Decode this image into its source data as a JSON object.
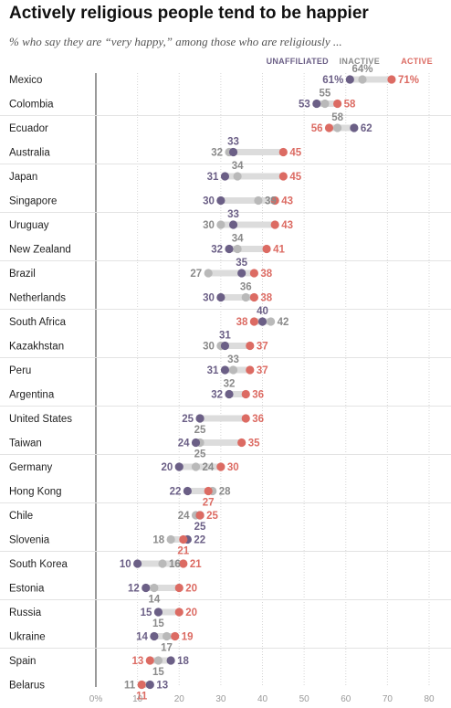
{
  "title": "Actively religious people tend to be happier",
  "subtitle": "% who say they are “very happy,” among those who are religiously ...",
  "colors": {
    "unaffiliated": "#6b5f86",
    "inactive": "#b9b9b9",
    "active": "#dc6b63",
    "inactive_label": "#8a8a8a"
  },
  "legend": {
    "unaffiliated": "UNAFFILIATED",
    "inactive": "INACTIVE",
    "active": "ACTIVE"
  },
  "chart_data": {
    "type": "dot",
    "title": "Actively religious people tend to be happier",
    "subtitle": "% who say they are “very happy,” among those who are religiously ...",
    "xlim": [
      0,
      80
    ],
    "xticks": [
      "0%",
      "10",
      "20",
      "30",
      "40",
      "50",
      "60",
      "70",
      "80"
    ],
    "series": [
      {
        "name": "UNAFFILIATED",
        "key": "unaffiliated"
      },
      {
        "name": "INACTIVE",
        "key": "inactive"
      },
      {
        "name": "ACTIVE",
        "key": "active"
      }
    ],
    "legend_position": "top-right",
    "rows": [
      {
        "country": "Mexico",
        "unaffiliated": 61,
        "inactive": 64,
        "active": 71,
        "labels": {
          "unaffiliated": "61%",
          "inactive": "64%",
          "active": "71%"
        }
      },
      {
        "country": "Colombia",
        "unaffiliated": 53,
        "inactive": 55,
        "active": 58
      },
      {
        "country": "Ecuador",
        "unaffiliated": 62,
        "inactive": 58,
        "active": 56
      },
      {
        "country": "Australia",
        "unaffiliated": 33,
        "inactive": 32,
        "active": 45
      },
      {
        "country": "Japan",
        "unaffiliated": 31,
        "inactive": 34,
        "active": 45
      },
      {
        "country": "Singapore",
        "unaffiliated": 30,
        "inactive": 39,
        "active": 43
      },
      {
        "country": "Uruguay",
        "unaffiliated": 33,
        "inactive": 30,
        "active": 43
      },
      {
        "country": "New Zealand",
        "unaffiliated": 32,
        "inactive": 34,
        "active": 41
      },
      {
        "country": "Brazil",
        "unaffiliated": 35,
        "inactive": 27,
        "active": 38
      },
      {
        "country": "Netherlands",
        "unaffiliated": 30,
        "inactive": 36,
        "active": 38
      },
      {
        "country": "South Africa",
        "unaffiliated": 40,
        "inactive": 42,
        "active": 38
      },
      {
        "country": "Kazakhstan",
        "unaffiliated": 31,
        "inactive": 30,
        "active": 37
      },
      {
        "country": "Peru",
        "unaffiliated": 31,
        "inactive": 33,
        "active": 37
      },
      {
        "country": "Argentina",
        "unaffiliated": 32,
        "inactive": 32,
        "active": 36
      },
      {
        "country": "United States",
        "unaffiliated": 25,
        "inactive": 25,
        "active": 36
      },
      {
        "country": "Taiwan",
        "unaffiliated": 24,
        "inactive": 25,
        "active": 35
      },
      {
        "country": "Germany",
        "unaffiliated": 20,
        "inactive": 24,
        "active": 30
      },
      {
        "country": "Hong Kong",
        "unaffiliated": 22,
        "inactive": 28,
        "active": 27
      },
      {
        "country": "Chile",
        "unaffiliated": 25,
        "inactive": 24,
        "active": 25
      },
      {
        "country": "Slovenia",
        "unaffiliated": 22,
        "inactive": 18,
        "active": 21
      },
      {
        "country": "South Korea",
        "unaffiliated": 10,
        "inactive": 16,
        "active": 21
      },
      {
        "country": "Estonia",
        "unaffiliated": 12,
        "inactive": 14,
        "active": 20
      },
      {
        "country": "Russia",
        "unaffiliated": 15,
        "inactive": 15,
        "active": 20
      },
      {
        "country": "Ukraine",
        "unaffiliated": 14,
        "inactive": 17,
        "active": 19
      },
      {
        "country": "Spain",
        "unaffiliated": 18,
        "inactive": 15,
        "active": 13
      },
      {
        "country": "Belarus",
        "unaffiliated": 13,
        "inactive": 11,
        "active": 11
      }
    ]
  }
}
